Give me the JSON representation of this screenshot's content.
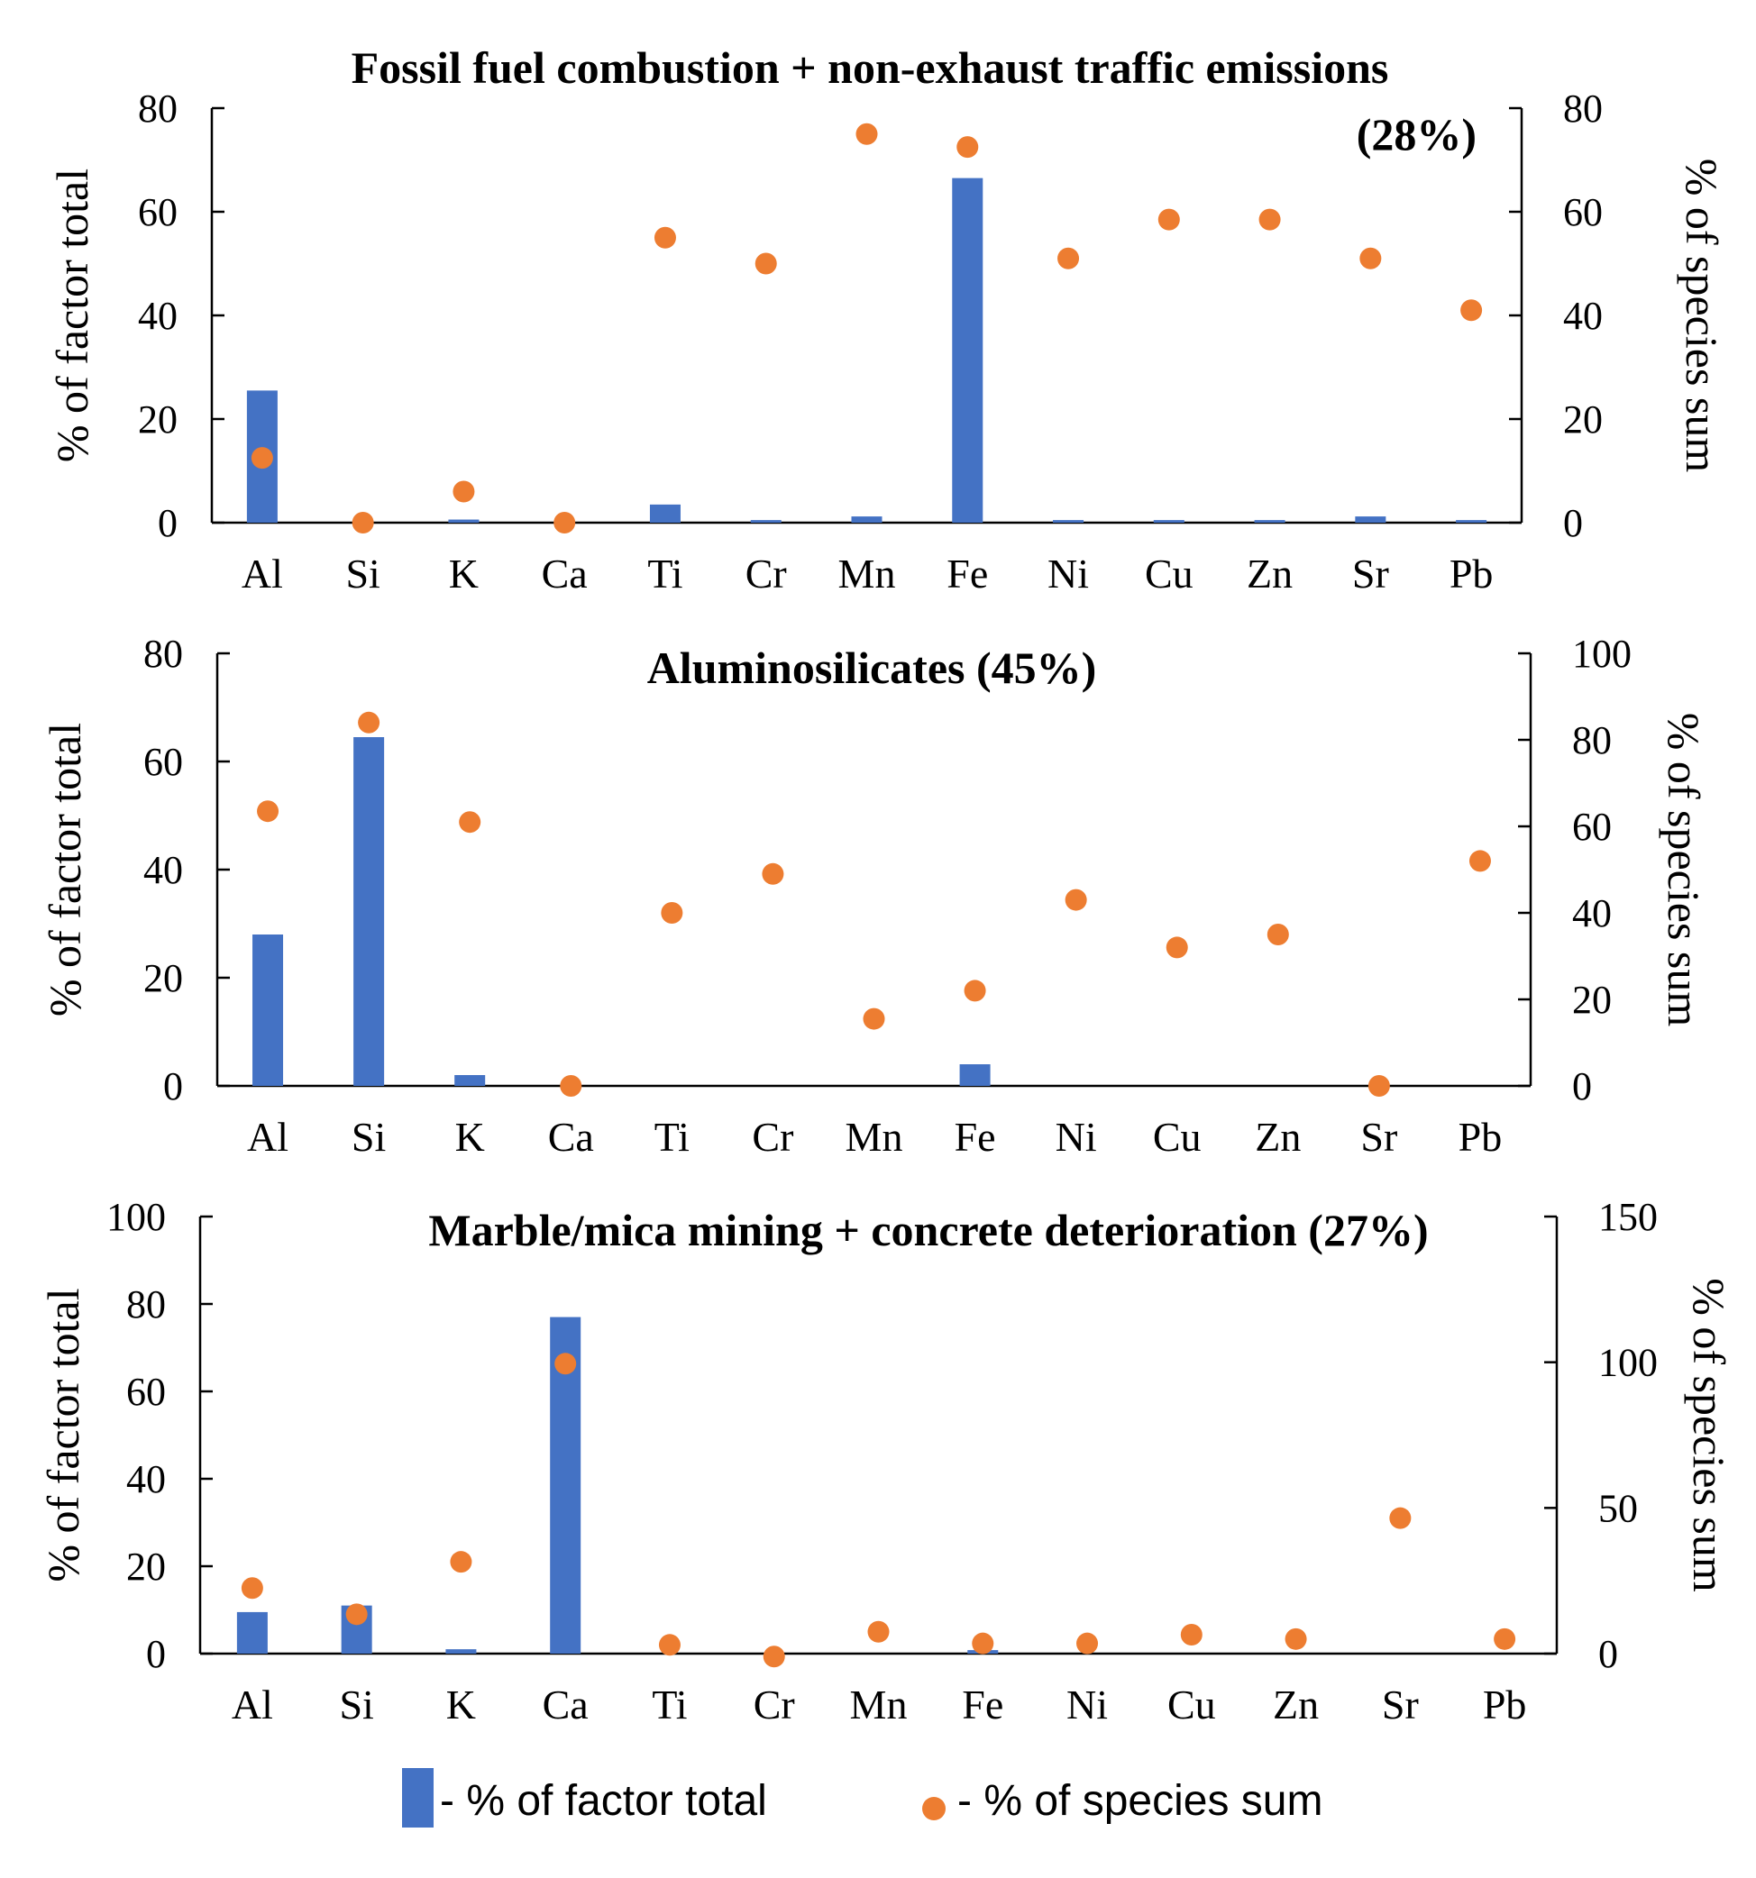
{
  "colors": {
    "bar": "#4472C4",
    "dot": "#ED7D31",
    "axis": "#000000"
  },
  "legend": {
    "bar_label": "- % of factor total",
    "dot_label": "- % of species sum"
  },
  "chart_data": [
    {
      "type": "bar",
      "title": "Fossil fuel combustion + non-exhaust traffic emissions",
      "title_line2": "(28%)",
      "ylabel": "% of factor total",
      "y2label": "% of species sum",
      "ylim": [
        0,
        80
      ],
      "y2lim": [
        0,
        80
      ],
      "yticks": [
        0,
        20,
        40,
        60,
        80
      ],
      "y2ticks": [
        0,
        20,
        40,
        60,
        80
      ],
      "categories": [
        "Al",
        "Si",
        "K",
        "Ca",
        "Ti",
        "Cr",
        "Mn",
        "Fe",
        "Ni",
        "Cu",
        "Zn",
        "Sr",
        "Pb"
      ],
      "series": [
        {
          "name": "% of factor total",
          "axis": "left",
          "kind": "bar",
          "values": [
            25.5,
            0,
            0.6,
            0,
            3.5,
            0.5,
            1.2,
            66.5,
            0.5,
            0.5,
            0.5,
            1.2,
            0.5
          ]
        },
        {
          "name": "% of species sum",
          "axis": "right",
          "kind": "scatter",
          "values": [
            12.5,
            0,
            6,
            0,
            55,
            50,
            75,
            72.5,
            51,
            58.5,
            58.5,
            51,
            41
          ]
        }
      ]
    },
    {
      "type": "bar",
      "title": "Aluminosilicates (45%)",
      "title_line2": "",
      "ylabel": "% of factor total",
      "y2label": "% of species sum",
      "ylim": [
        0,
        80
      ],
      "y2lim": [
        0,
        100
      ],
      "yticks": [
        0,
        20,
        40,
        60,
        80
      ],
      "y2ticks": [
        0,
        20,
        40,
        60,
        80,
        100
      ],
      "categories": [
        "Al",
        "Si",
        "K",
        "Ca",
        "Ti",
        "Cr",
        "Mn",
        "Fe",
        "Ni",
        "Cu",
        "Zn",
        "Sr",
        "Pb"
      ],
      "series": [
        {
          "name": "% of factor total",
          "axis": "left",
          "kind": "bar",
          "values": [
            28,
            64.5,
            2,
            0,
            0,
            0,
            0,
            4,
            0,
            0,
            0,
            0,
            0
          ]
        },
        {
          "name": "% of species sum",
          "axis": "right",
          "kind": "scatter",
          "values": [
            63.5,
            84,
            61,
            0,
            40,
            49,
            15.5,
            22,
            43,
            32,
            35,
            0,
            52
          ]
        }
      ]
    },
    {
      "type": "bar",
      "title": "Marble/mica mining + concrete deterioration (27%)",
      "title_line2": "",
      "ylabel": "% of factor total",
      "y2label": "% of species sum",
      "ylim": [
        0,
        100
      ],
      "y2lim": [
        0,
        150
      ],
      "yticks": [
        0,
        20,
        40,
        60,
        80,
        100
      ],
      "y2ticks": [
        0,
        50,
        100,
        150
      ],
      "categories": [
        "Al",
        "Si",
        "K",
        "Ca",
        "Ti",
        "Cr",
        "Mn",
        "Fe",
        "Ni",
        "Cu",
        "Zn",
        "Sr",
        "Pb"
      ],
      "series": [
        {
          "name": "% of factor total",
          "axis": "left",
          "kind": "bar",
          "values": [
            9.5,
            11,
            1,
            77,
            0,
            0,
            0,
            0.8,
            0,
            0,
            0,
            0,
            0
          ]
        },
        {
          "name": "% of species sum",
          "axis": "right",
          "kind": "scatter",
          "values": [
            22.5,
            13.5,
            31.5,
            99.5,
            3,
            -1,
            7.5,
            3.5,
            3.5,
            6.5,
            5,
            46.5,
            5
          ]
        }
      ]
    }
  ]
}
